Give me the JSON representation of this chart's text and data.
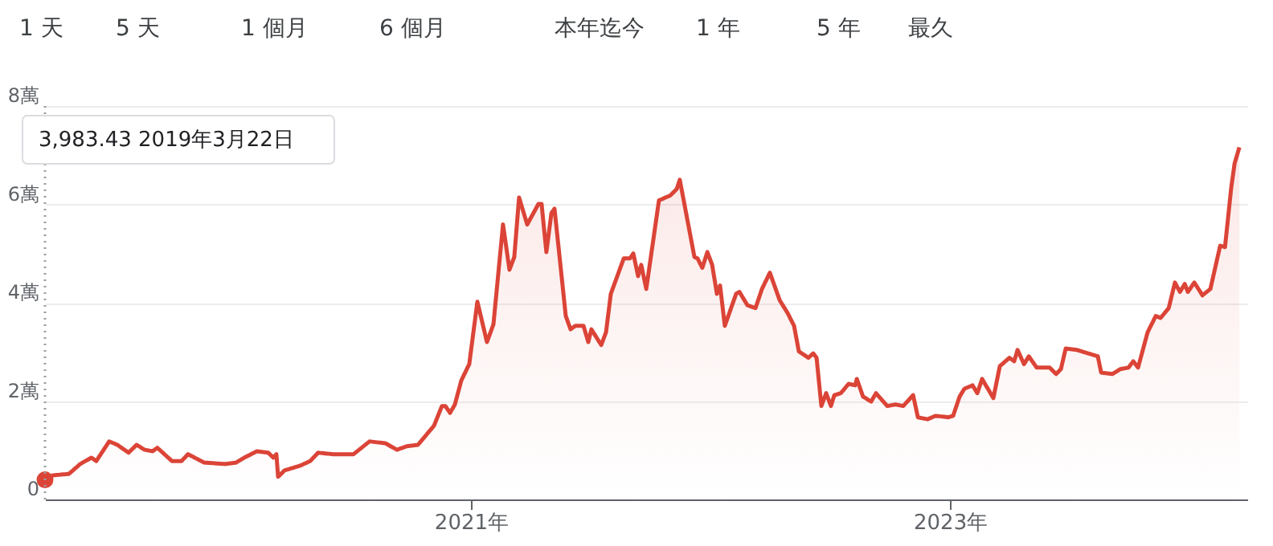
{
  "chart_data": {
    "type": "area",
    "xlim": [
      2019.222,
      2024.241
    ],
    "xticks": [
      {
        "value": 2021,
        "label": "2021年"
      },
      {
        "value": 2023,
        "label": "2023年"
      }
    ],
    "ylim": [
      0,
      8
    ],
    "yticks": [
      0,
      {
        "value": 2,
        "label": "2萬"
      },
      {
        "value": 4,
        "label": "4萬"
      },
      {
        "value": 6,
        "label": "6萬"
      },
      {
        "value": 8,
        "label": "8萬"
      }
    ],
    "grid": "y",
    "series": [
      {
        "color": "#db4437",
        "x": [
          2019.222,
          2019.255,
          2019.322,
          2019.369,
          2019.416,
          2019.436,
          2019.49,
          2019.524,
          2019.571,
          2019.604,
          2019.638,
          2019.671,
          2019.691,
          2019.752,
          2019.792,
          2019.819,
          2019.886,
          2019.973,
          2020.02,
          2020.054,
          2020.107,
          2020.154,
          2020.175,
          2020.188,
          2020.195,
          2020.222,
          2020.289,
          2020.329,
          2020.362,
          2020.423,
          2020.51,
          2020.577,
          2020.644,
          2020.691,
          2020.732,
          2020.779,
          2020.846,
          2020.879,
          2020.893,
          2020.913,
          2020.933,
          2020.96,
          2020.993,
          2021.027,
          2021.067,
          2021.094,
          2021.134,
          2021.161,
          2021.181,
          2021.201,
          2021.235,
          2021.282,
          2021.295,
          2021.315,
          2021.336,
          2021.349,
          2021.396,
          2021.416,
          2021.436,
          2021.47,
          2021.49,
          2021.503,
          2021.544,
          2021.564,
          2021.584,
          2021.638,
          2021.664,
          2021.678,
          2021.698,
          2021.711,
          2021.732,
          2021.785,
          2021.832,
          2021.859,
          2021.872,
          2021.933,
          2021.946,
          2021.966,
          2021.987,
          2022.007,
          2022.027,
          2022.04,
          2022.06,
          2022.107,
          2022.121,
          2022.154,
          2022.188,
          2022.215,
          2022.248,
          2022.289,
          2022.322,
          2022.349,
          2022.369,
          2022.409,
          2022.429,
          2022.443,
          2022.463,
          2022.483,
          2022.503,
          2022.517,
          2022.544,
          2022.577,
          2022.604,
          2022.611,
          2022.637,
          2022.671,
          2022.691,
          2022.738,
          2022.772,
          2022.805,
          2022.846,
          2022.866,
          2022.906,
          2022.94,
          2022.993,
          2023.013,
          2023.04,
          2023.06,
          2023.094,
          2023.114,
          2023.134,
          2023.181,
          2023.208,
          2023.248,
          2023.268,
          2023.282,
          2023.309,
          2023.329,
          2023.362,
          2023.416,
          2023.443,
          2023.463,
          2023.483,
          2023.53,
          2023.617,
          2023.631,
          2023.678,
          2023.711,
          2023.745,
          2023.765,
          2023.785,
          2023.825,
          2023.859,
          2023.879,
          2023.913,
          2023.939,
          2023.96,
          2023.98,
          2023.993,
          2024.02,
          2024.054,
          2024.087,
          2024.128,
          2024.148,
          2024.174,
          2024.188,
          2024.208
        ],
        "values": [
          0.398343,
          0.49,
          0.52,
          0.72,
          0.85,
          0.78,
          1.18,
          1.11,
          0.95,
          1.11,
          1.01,
          0.98,
          1.05,
          0.78,
          0.78,
          0.92,
          0.75,
          0.72,
          0.75,
          0.85,
          0.98,
          0.95,
          0.85,
          0.92,
          0.46,
          0.59,
          0.69,
          0.78,
          0.95,
          0.92,
          0.92,
          1.18,
          1.14,
          1.01,
          1.08,
          1.11,
          1.5,
          1.9,
          1.9,
          1.76,
          1.93,
          2.42,
          2.75,
          4.02,
          3.2,
          3.56,
          5.59,
          4.67,
          4.93,
          6.14,
          5.59,
          6.01,
          6.01,
          5.03,
          5.82,
          5.91,
          3.73,
          3.46,
          3.53,
          3.53,
          3.2,
          3.46,
          3.14,
          3.4,
          4.18,
          4.9,
          4.9,
          5.0,
          4.54,
          4.77,
          4.28,
          6.08,
          6.18,
          6.31,
          6.5,
          4.93,
          4.9,
          4.71,
          5.03,
          4.77,
          4.18,
          4.35,
          3.53,
          4.18,
          4.22,
          3.95,
          3.89,
          4.28,
          4.61,
          4.05,
          3.79,
          3.53,
          3.01,
          2.88,
          2.97,
          2.88,
          1.9,
          2.16,
          1.9,
          2.12,
          2.16,
          2.35,
          2.32,
          2.45,
          2.09,
          1.99,
          2.16,
          1.9,
          1.93,
          1.9,
          2.12,
          1.67,
          1.63,
          1.7,
          1.67,
          1.7,
          2.09,
          2.25,
          2.32,
          2.16,
          2.45,
          2.06,
          2.71,
          2.88,
          2.81,
          3.04,
          2.75,
          2.91,
          2.68,
          2.68,
          2.55,
          2.65,
          3.07,
          3.04,
          2.91,
          2.58,
          2.55,
          2.65,
          2.68,
          2.81,
          2.68,
          3.4,
          3.73,
          3.69,
          3.89,
          4.41,
          4.22,
          4.38,
          4.22,
          4.41,
          4.15,
          4.28,
          5.16,
          5.13,
          6.34,
          6.83,
          7.16
        ]
      },
      {
        "type": "scatter",
        "color": "#db4437",
        "marker": "circle",
        "x": [
          2019.222
        ],
        "values": [
          0.398343
        ]
      }
    ],
    "ref_lines": [
      {
        "axis": "x",
        "value": 2019.222,
        "line_style": "dotted",
        "color": "#9e9e9e"
      }
    ],
    "annotations": [
      "1 天",
      "5 天",
      "1 個月",
      "6 個月",
      "本年迄今",
      "1 年",
      "5 年",
      "最久",
      "3,983.43  2019年3月22日"
    ]
  }
}
